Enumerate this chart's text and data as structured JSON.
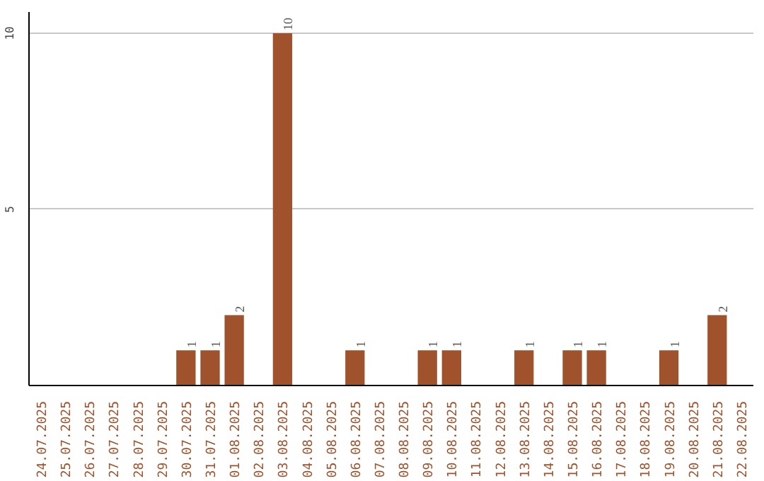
{
  "chart_data": {
    "type": "bar",
    "categories": [
      "24.07.2025",
      "25.07.2025",
      "26.07.2025",
      "27.07.2025",
      "28.07.2025",
      "29.07.2025",
      "30.07.2025",
      "31.07.2025",
      "01.08.2025",
      "02.08.2025",
      "03.08.2025",
      "04.08.2025",
      "05.08.2025",
      "06.08.2025",
      "07.08.2025",
      "08.08.2025",
      "09.08.2025",
      "10.08.2025",
      "11.08.2025",
      "12.08.2025",
      "13.08.2025",
      "14.08.2025",
      "15.08.2025",
      "16.08.2025",
      "17.08.2025",
      "18.08.2025",
      "19.08.2025",
      "20.08.2025",
      "21.08.2025",
      "22.08.2025"
    ],
    "values": [
      0,
      0,
      0,
      0,
      0,
      0,
      1,
      1,
      2,
      0,
      10,
      0,
      0,
      1,
      0,
      0,
      1,
      1,
      0,
      0,
      1,
      0,
      1,
      1,
      0,
      0,
      1,
      0,
      2,
      0
    ],
    "value_labels": [
      null,
      null,
      null,
      null,
      null,
      null,
      "1",
      "1",
      "2",
      null,
      "10",
      null,
      null,
      "1",
      null,
      null,
      "1",
      "1",
      null,
      null,
      "1",
      null,
      "1",
      "1",
      null,
      null,
      "1",
      null,
      "2",
      null
    ],
    "color": "#a0522d",
    "ylim": [
      0,
      10.6
    ],
    "yticks": [
      5,
      10
    ],
    "grid": "y"
  }
}
